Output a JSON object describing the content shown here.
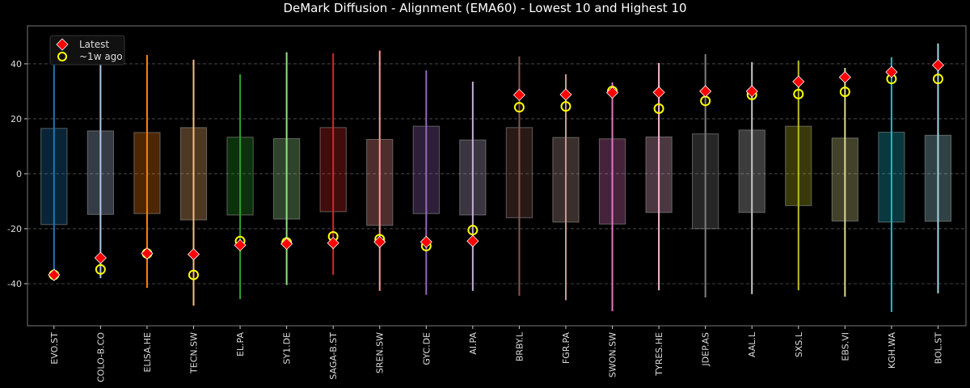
{
  "chart_data": {
    "type": "box-range",
    "title": "DeMark Diffusion - Alignment (EMA60) - Lowest 10 and Highest 10",
    "xlabel": "",
    "ylabel": "",
    "ylim": [
      -55.3,
      53.8
    ],
    "yticks": [
      -40,
      -20,
      0,
      20,
      40
    ],
    "grid": true,
    "legend_position": "top-left",
    "legend": [
      {
        "name": "Latest",
        "marker": "diamond",
        "color": "#ff0000"
      },
      {
        "name": "~1w ago",
        "marker": "circle",
        "color": "#ffff00"
      }
    ],
    "categories": [
      "EVO.ST",
      "COLO-B.CO",
      "ELISA.HE",
      "TECN.SW",
      "EL.PA",
      "SY1.DE",
      "SAGA-B.ST",
      "SREN.SW",
      "GYC.DE",
      "AI.PA",
      "BRBY.L",
      "FGR.PA",
      "SWON.SW",
      "TYRES.HE",
      "JDEP.AS",
      "AAL.L",
      "SXS.L",
      "EBS.VI",
      "KGH.WA",
      "BOL.ST"
    ],
    "colors": [
      "#1f77b4",
      "#aec7e8",
      "#ff7f0e",
      "#ffbb78",
      "#2ca02c",
      "#98df8a",
      "#d62728",
      "#ff9896",
      "#9467bd",
      "#c5b0d5",
      "#8c564b",
      "#c49c94",
      "#e377c2",
      "#f7b6d2",
      "#7f7f7f",
      "#c7c7c7",
      "#bcbd22",
      "#dbdb8d",
      "#17becf",
      "#9edae5"
    ],
    "range_max": [
      49,
      42,
      43.2,
      41.5,
      36.2,
      44.2,
      43.8,
      44.8,
      37.6,
      33.5,
      42.7,
      36.2,
      33.2,
      40.3,
      43.5,
      40.6,
      41.2,
      38.5,
      42.4,
      47.4
    ],
    "range_min": [
      -39,
      -38,
      -41.5,
      -48,
      -45.6,
      -40.5,
      -36.8,
      -42.6,
      -44,
      -42.6,
      -44.4,
      -46,
      -50,
      -42.4,
      -45,
      -43.8,
      -42.4,
      -44.7,
      -50.3,
      -43.5
    ],
    "box_high": [
      16.5,
      15.6,
      15,
      16.8,
      13.3,
      12.8,
      16.8,
      12.5,
      17.3,
      12.3,
      16.8,
      13.2,
      12.7,
      13.4,
      14.5,
      15.9,
      17.3,
      13,
      15.1,
      14
    ],
    "box_low": [
      -18.5,
      -14.8,
      -14.5,
      -16.8,
      -15,
      -16.5,
      -13.8,
      -18.8,
      -14.5,
      -15,
      -16,
      -17.6,
      -18.3,
      -14.1,
      -20,
      -14.1,
      -11.6,
      -17.2,
      -17.6,
      -17.3
    ],
    "series": [
      {
        "name": "Latest",
        "values": [
          -36.8,
          -30.6,
          -29,
          -29.3,
          -26,
          -25.5,
          -25.2,
          -24.8,
          -24.8,
          -24.5,
          28.7,
          28.8,
          29.5,
          29.6,
          30,
          30,
          33.5,
          35.1,
          37,
          39.5
        ]
      },
      {
        "name": "~1w ago",
        "values": [
          -36.8,
          -34.8,
          -29,
          -36.8,
          -24.5,
          -25,
          -22.8,
          -23.8,
          -26.3,
          -20.5,
          24.2,
          24.5,
          30.1,
          23.7,
          26.5,
          28.7,
          29,
          29.8,
          34.5,
          34.5
        ]
      }
    ]
  }
}
